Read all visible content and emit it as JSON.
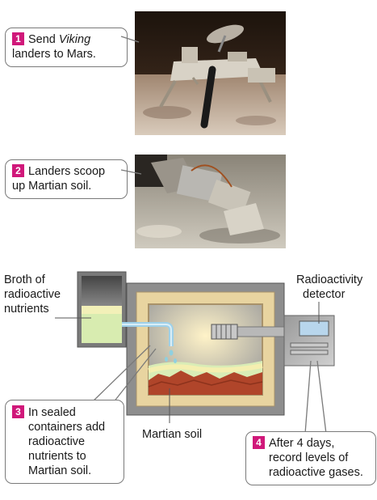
{
  "steps": [
    {
      "number": "1",
      "text_a": "Send ",
      "text_em": "Viking",
      "text_b": "landers to Mars."
    },
    {
      "number": "2",
      "text_a": "Landers scoop",
      "text_b": "up Martian soil."
    },
    {
      "number": "3",
      "lines": [
        "In sealed",
        "containers add",
        "radioactive",
        "nutrients to",
        "Martian soil."
      ]
    },
    {
      "number": "4",
      "lines": [
        "After 4 days,",
        "record levels of",
        "radioactive gases."
      ]
    }
  ],
  "labels": {
    "broth": [
      "Broth of",
      "radioactive",
      "nutrients"
    ],
    "detector": [
      "Radioactivity",
      "detector"
    ],
    "soil": "Martian soil"
  },
  "colors": {
    "accent": "#d0187a",
    "frame": "#e8d4a0",
    "soil": "#b0452a",
    "broth": "#d8ecb0"
  }
}
